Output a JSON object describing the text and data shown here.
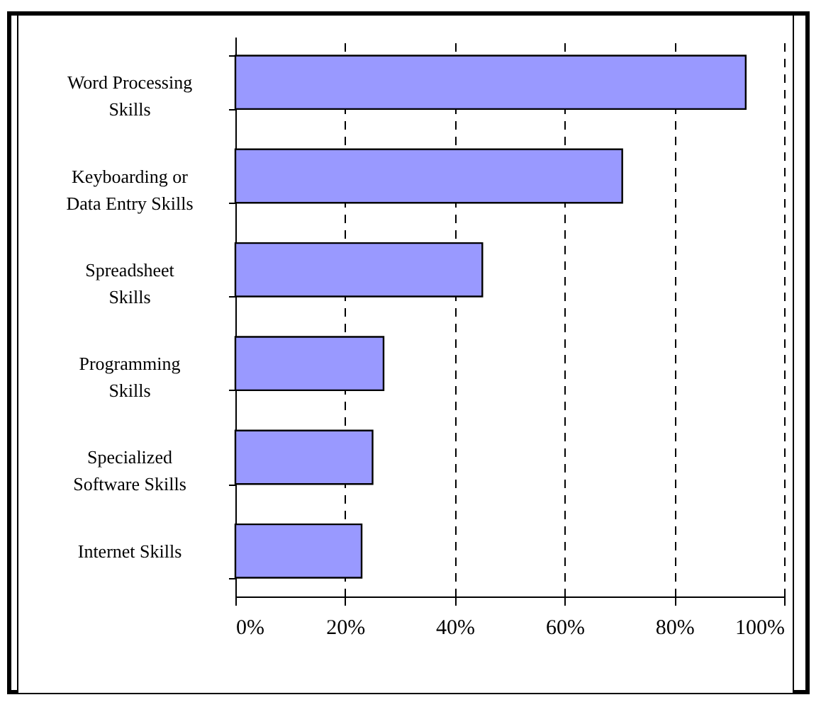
{
  "chart_data": {
    "type": "bar",
    "orientation": "horizontal",
    "categories": [
      "Word Processing Skills",
      "Keyboarding or Data Entry Skills",
      "Spreadsheet Skills",
      "Programming Skills",
      "Specialized Software Skills",
      "Internet Skills"
    ],
    "values": [
      93,
      70.5,
      45,
      27,
      25,
      23
    ],
    "color": "#9999ff",
    "xlim": [
      0,
      100
    ],
    "xticks": [
      {
        "value": 0,
        "label": "0%"
      },
      {
        "value": 20,
        "label": "20%"
      },
      {
        "value": 40,
        "label": "40%"
      },
      {
        "value": 60,
        "label": "60%"
      },
      {
        "value": 80,
        "label": "80%"
      },
      {
        "value": 100,
        "label": "100%"
      }
    ],
    "grid": "x"
  }
}
